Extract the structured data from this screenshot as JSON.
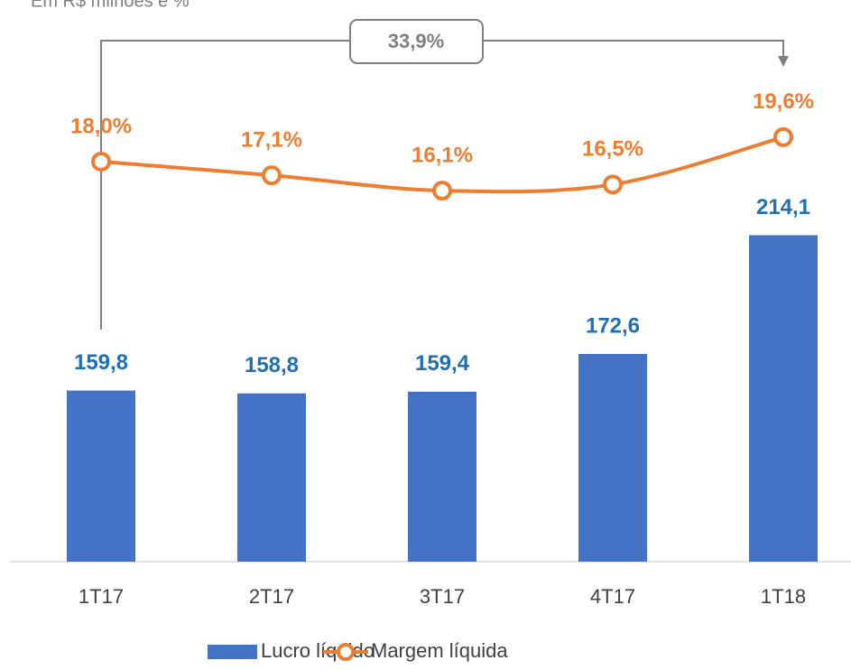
{
  "chart_data": {
    "type": "bar_line",
    "subtitle": "Em R$ milhões e %",
    "categories": [
      "1T17",
      "2T17",
      "3T17",
      "4T17",
      "1T18"
    ],
    "series": [
      {
        "name": "Lucro líquido",
        "type": "bar",
        "color": "#4472c4",
        "label_color": "#1f6fb5",
        "values": [
          159.8,
          158.8,
          159.4,
          172.6,
          214.1
        ],
        "value_labels": [
          "159,8",
          "158,8",
          "159,4",
          "172,6",
          "214,1"
        ]
      },
      {
        "name": "Margem líquida",
        "type": "line",
        "axis": "y2",
        "color": "#ed7d31",
        "values": [
          18.0,
          17.1,
          16.1,
          16.5,
          19.6
        ],
        "value_labels": [
          "18,0%",
          "17,1%",
          "16,1%",
          "16,5%",
          "19,6%"
        ]
      }
    ],
    "ylim": [
      100,
      290
    ],
    "y2lim": [
      -8.2,
      27.4
    ],
    "annotations": [
      "33,9%"
    ],
    "legend": "bottom"
  }
}
